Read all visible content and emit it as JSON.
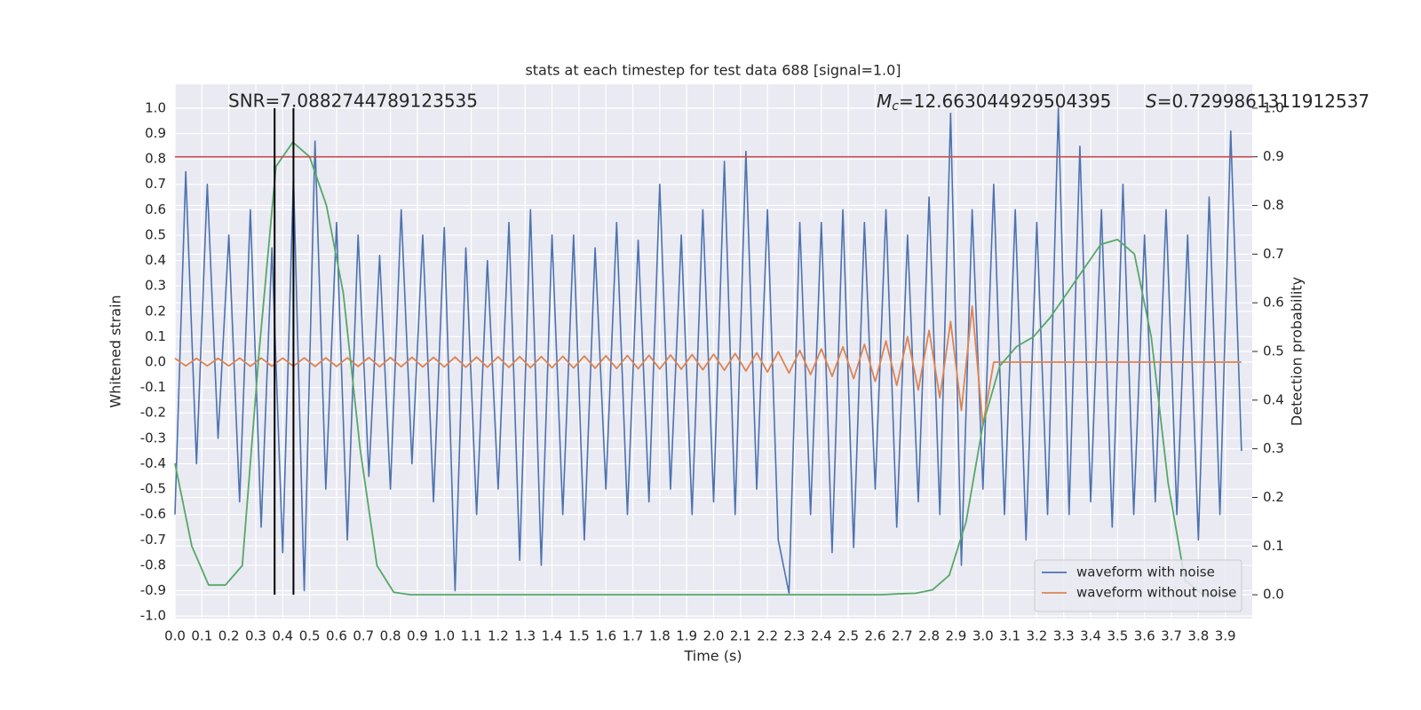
{
  "chart_data": {
    "type": "line",
    "title": "stats at each timestep for test data 688 [signal=1.0]",
    "x_label": "Time (s)",
    "y_label": "Whitened strain",
    "y2_label": "Detection probability",
    "annotations": {
      "snr": "SNR=7.0882744789123535",
      "mc_symbol": "M",
      "mc_subscript": "c",
      "mc_value": "=12.663044929504395",
      "s_symbol": "S",
      "s_value": "=0.7299861311912537"
    },
    "x": [
      0,
      0.04,
      0.08,
      0.12,
      0.16,
      0.2,
      0.24,
      0.28,
      0.32,
      0.36,
      0.4,
      0.44,
      0.48,
      0.52,
      0.56,
      0.6,
      0.64,
      0.68,
      0.72,
      0.76,
      0.8,
      0.84,
      0.88,
      0.92,
      0.96,
      1.0,
      1.04,
      1.08,
      1.12,
      1.16,
      1.2,
      1.24,
      1.28,
      1.32,
      1.36,
      1.4,
      1.44,
      1.48,
      1.52,
      1.56,
      1.6,
      1.64,
      1.68,
      1.72,
      1.76,
      1.8,
      1.84,
      1.88,
      1.92,
      1.96,
      2.0,
      2.04,
      2.08,
      2.12,
      2.16,
      2.2,
      2.24,
      2.28,
      2.32,
      2.36,
      2.4,
      2.44,
      2.48,
      2.52,
      2.56,
      2.6,
      2.64,
      2.68,
      2.72,
      2.76,
      2.8,
      2.84,
      2.88,
      2.92,
      2.96,
      3.0,
      3.04,
      3.08,
      3.12,
      3.16,
      3.2,
      3.24,
      3.28,
      3.32,
      3.36,
      3.4,
      3.44,
      3.48,
      3.52,
      3.56,
      3.6,
      3.64,
      3.68,
      3.72,
      3.76,
      3.8,
      3.84,
      3.88,
      3.92,
      3.96
    ],
    "series": [
      {
        "name": "waveform with noise",
        "color": "#4c72b0",
        "values": [
          -0.6,
          0.75,
          -0.4,
          0.7,
          -0.3,
          0.5,
          -0.55,
          0.6,
          -0.65,
          0.45,
          -0.75,
          0.73,
          -0.9,
          0.87,
          -0.5,
          0.55,
          -0.7,
          0.5,
          -0.45,
          0.42,
          -0.5,
          0.6,
          -0.4,
          0.5,
          -0.55,
          0.53,
          -0.9,
          0.45,
          -0.6,
          0.4,
          -0.5,
          0.55,
          -0.78,
          0.6,
          -0.8,
          0.5,
          -0.6,
          0.5,
          -0.7,
          0.45,
          -0.5,
          0.55,
          -0.6,
          0.48,
          -0.55,
          0.7,
          -0.5,
          0.5,
          -0.6,
          0.6,
          -0.55,
          0.79,
          -0.6,
          0.83,
          -0.5,
          0.6,
          -0.7,
          -0.91,
          0.55,
          -0.6,
          0.55,
          -0.75,
          0.6,
          -0.73,
          0.55,
          -0.5,
          0.6,
          -0.65,
          0.5,
          -0.55,
          0.65,
          -0.6,
          0.98,
          -0.8,
          0.6,
          -0.5,
          0.7,
          -0.6,
          0.6,
          -0.7,
          0.55,
          -0.6,
          1.0,
          -0.6,
          0.85,
          -0.55,
          0.6,
          -0.65,
          0.7,
          -0.6,
          0.5,
          -0.55,
          0.6,
          -0.6,
          0.5,
          -0.7,
          0.65,
          -0.6,
          0.91,
          -0.35
        ]
      },
      {
        "name": "waveform without noise",
        "color": "#dd8452",
        "values": [
          0.015,
          -0.015,
          0.015,
          -0.015,
          0.015,
          -0.015,
          0.016,
          -0.016,
          0.016,
          -0.016,
          0.016,
          -0.016,
          0.017,
          -0.017,
          0.017,
          -0.017,
          0.017,
          -0.017,
          0.018,
          -0.018,
          0.018,
          -0.018,
          0.019,
          -0.019,
          0.019,
          -0.019,
          0.02,
          -0.02,
          0.02,
          -0.02,
          0.021,
          -0.021,
          0.022,
          -0.022,
          0.022,
          -0.022,
          0.023,
          -0.023,
          0.024,
          -0.024,
          0.025,
          -0.025,
          0.026,
          -0.026,
          0.027,
          -0.027,
          0.028,
          -0.028,
          0.03,
          -0.03,
          0.031,
          -0.032,
          0.034,
          -0.035,
          0.037,
          -0.039,
          0.041,
          -0.043,
          0.046,
          -0.049,
          0.052,
          -0.056,
          0.06,
          -0.065,
          0.07,
          -0.076,
          0.083,
          -0.092,
          0.1,
          -0.11,
          0.125,
          -0.14,
          0.16,
          -0.19,
          0.22,
          -0.25,
          0,
          0,
          0,
          0,
          0,
          0,
          0,
          0,
          0,
          0,
          0,
          0,
          0,
          0,
          0,
          0,
          0,
          0,
          0,
          0,
          0,
          0,
          0,
          0
        ]
      },
      {
        "color": "#55a868",
        "axis": "y2",
        "x": [
          0,
          0.0625,
          0.125,
          0.1875,
          0.25,
          0.3125,
          0.375,
          0.4375,
          0.5,
          0.5625,
          0.625,
          0.6875,
          0.75,
          0.8125,
          0.875,
          0.9375,
          1.0,
          1.0625,
          1.125,
          1.1875,
          1.25,
          1.3125,
          1.375,
          1.4375,
          1.5,
          1.5625,
          1.625,
          1.6875,
          1.75,
          1.8125,
          1.875,
          1.9375,
          2.0,
          2.0625,
          2.125,
          2.1875,
          2.25,
          2.3125,
          2.375,
          2.4375,
          2.5,
          2.5625,
          2.625,
          2.6875,
          2.75,
          2.8125,
          2.875,
          2.9375,
          3.0,
          3.0625,
          3.125,
          3.1875,
          3.25,
          3.3125,
          3.375,
          3.4375,
          3.5,
          3.5625,
          3.625,
          3.6875,
          3.75,
          3.8125,
          3.875,
          3.9375
        ],
        "values": [
          0.27,
          0.1,
          0.02,
          0.02,
          0.06,
          0.5,
          0.88,
          0.93,
          0.9,
          0.8,
          0.62,
          0.3,
          0.06,
          0.005,
          0.0,
          0,
          0,
          0,
          0,
          0,
          0,
          0,
          0,
          0,
          0,
          0,
          0,
          0,
          0,
          0,
          0,
          0,
          0,
          0,
          0,
          0,
          0,
          0,
          0,
          0,
          0,
          0,
          0,
          0.002,
          0.003,
          0.01,
          0.04,
          0.15,
          0.35,
          0.47,
          0.51,
          0.53,
          0.57,
          0.62,
          0.67,
          0.72,
          0.73,
          0.7,
          0.53,
          0.23,
          0.03,
          0.002,
          0,
          0
        ]
      }
    ],
    "threshold": {
      "value": 0.9,
      "axis": "y2",
      "color": "#c44e52"
    },
    "vlines": [
      0.37,
      0.44
    ],
    "vline_color": "#000000",
    "xlim": [
      0,
      4.0
    ],
    "ylim": [
      -1.01,
      1.094
    ],
    "y2lim": [
      -0.049,
      1.049
    ],
    "xticks": [
      {
        "value": 0,
        "label": "0.0"
      },
      0.1,
      0.2,
      0.3,
      0.4,
      0.5,
      0.6,
      0.7,
      0.8,
      0.9,
      {
        "value": 1,
        "label": "1.0"
      },
      1.1,
      1.2,
      1.3,
      1.4,
      1.5,
      1.6,
      1.7,
      1.8,
      1.9,
      {
        "value": 2,
        "label": "2.0"
      },
      2.1,
      2.2,
      2.3,
      2.4,
      2.5,
      2.6,
      2.7,
      2.8,
      2.9,
      {
        "value": 3,
        "label": "3.0"
      },
      3.1,
      3.2,
      3.3,
      3.4,
      3.5,
      3.6,
      3.7,
      3.8,
      3.9
    ],
    "yticks": [
      {
        "value": -1,
        "label": "-1.0"
      },
      -0.9,
      -0.8,
      -0.7,
      -0.6,
      -0.5,
      -0.4,
      -0.3,
      -0.2,
      -0.1,
      {
        "value": 0,
        "label": "0.0"
      },
      0.1,
      0.2,
      0.3,
      0.4,
      0.5,
      0.6,
      0.7,
      0.8,
      0.9,
      {
        "value": 1,
        "label": "1.0"
      }
    ],
    "y2ticks": [
      {
        "value": 0,
        "label": "0.0"
      },
      0.1,
      0.2,
      0.3,
      0.4,
      0.5,
      0.6,
      0.7,
      0.8,
      0.9,
      {
        "value": 1,
        "label": "1.0"
      }
    ],
    "grid": true,
    "legend": "lower right"
  }
}
